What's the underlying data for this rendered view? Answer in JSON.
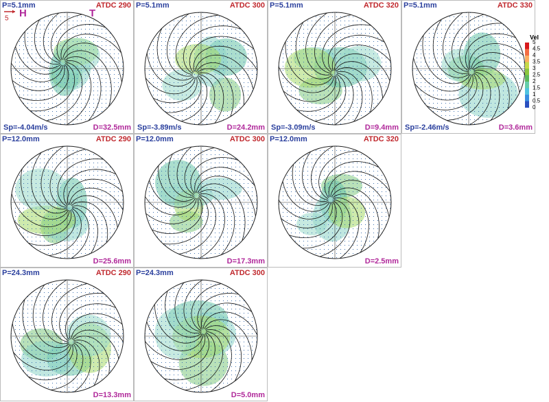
{
  "panels": [
    {
      "p": "P=5.1mm",
      "atdc": "ATDC 290",
      "sp": "Sp=-4.04m/s",
      "d": "D=32.5mm"
    },
    {
      "p": "P=5.1mm",
      "atdc": "ATDC 300",
      "sp": "Sp=-3.89m/s",
      "d": "D=24.2mm"
    },
    {
      "p": "P=5.1mm",
      "atdc": "ATDC 320",
      "sp": "Sp=-3.09m/s",
      "d": "D=9.4mm"
    },
    {
      "p": "P=5.1mm",
      "atdc": "ATDC 330",
      "sp": "Sp=-2.46m/s",
      "d": "D=3.6mm"
    },
    {
      "p": "P=12.0mm",
      "atdc": "ATDC 290",
      "d": "D=25.6mm"
    },
    {
      "p": "P=12.0mm",
      "atdc": "ATDC 300",
      "d": "D=17.3mm"
    },
    {
      "p": "P=12.0mm",
      "atdc": "ATDC 320",
      "d": "D=2.5mm"
    },
    {
      "p": "P=24.3mm",
      "atdc": "ATDC 290",
      "d": "D=13.3mm"
    },
    {
      "p": "P=24.3mm",
      "atdc": "ATDC 300",
      "d": "D=5.0mm"
    }
  ],
  "annotations": {
    "scale": "5",
    "h": "H",
    "t": "T"
  },
  "colorbar": {
    "title": "Vel",
    "labels": [
      "5",
      "4.5",
      "4",
      "3.5",
      "3",
      "2.5",
      "2",
      "1.5",
      "1",
      "0.5",
      "0"
    ]
  }
}
